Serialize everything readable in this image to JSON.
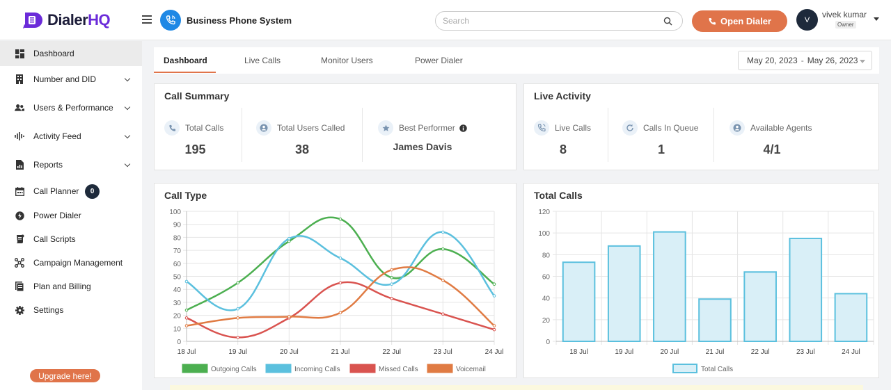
{
  "app": {
    "logo_prefix": "Dialer",
    "logo_suffix": "HQ",
    "system_title": "Business Phone System"
  },
  "header": {
    "search_placeholder": "Search",
    "open_dialer_label": "Open Dialer",
    "user_initial": "V",
    "user_name": "vivek kumar",
    "user_role": "Owner"
  },
  "sidebar": {
    "items": [
      {
        "label": "Dashboard",
        "icon": "dashboard-icon"
      },
      {
        "label": "Number and DID",
        "icon": "building-icon"
      },
      {
        "label": "Users & Performance",
        "icon": "users-icon"
      },
      {
        "label": "Activity Feed",
        "icon": "activity-icon"
      },
      {
        "label": "Reports",
        "icon": "report-icon"
      },
      {
        "label": "Call Planner",
        "icon": "calendar-icon",
        "badge": "0"
      },
      {
        "label": "Power Dialer",
        "icon": "power-icon"
      },
      {
        "label": "Call Scripts",
        "icon": "script-icon"
      },
      {
        "label": "Campaign Management",
        "icon": "campaign-icon"
      },
      {
        "label": "Plan and Billing",
        "icon": "billing-icon"
      },
      {
        "label": "Settings",
        "icon": "gear-icon"
      }
    ],
    "upgrade_label": "Upgrade here!"
  },
  "tabs": {
    "items": [
      "Dashboard",
      "Live Calls",
      "Monitor Users",
      "Power Dialer"
    ],
    "date_start": "May 20, 2023",
    "date_sep": "-",
    "date_end": "May 26, 2023"
  },
  "call_summary": {
    "title": "Call Summary",
    "total_calls_label": "Total Calls",
    "total_calls_value": "195",
    "total_users_label": "Total Users Called",
    "total_users_value": "38",
    "best_performer_label": "Best Performer",
    "best_performer_value": "James Davis"
  },
  "live_activity": {
    "title": "Live Activity",
    "live_calls_label": "Live Calls",
    "live_calls_value": "8",
    "queue_label": "Calls In Queue",
    "queue_value": "1",
    "agents_label": "Available Agents",
    "agents_value": "4/1"
  },
  "colors": {
    "accent": "#e0744a",
    "outgoing": "#4caf50",
    "incoming": "#5bc0de",
    "missed": "#d9534f",
    "voicemail": "#e07b43",
    "total_bar_fill": "#d9eff7",
    "total_bar_stroke": "#5bc0de"
  },
  "chart_data": [
    {
      "type": "line",
      "title": "Call Type",
      "categories": [
        "18 Jul",
        "19 Jul",
        "20 Jul",
        "21 Jul",
        "22 Jul",
        "23 Jul",
        "24 Jul"
      ],
      "ylim": [
        0,
        100
      ],
      "yticks": [
        0,
        10,
        20,
        30,
        40,
        50,
        60,
        70,
        80,
        90,
        100
      ],
      "grid": true,
      "legend": "bottom",
      "series": [
        {
          "name": "Outgoing Calls",
          "values": [
            24,
            45,
            77,
            94,
            49,
            71,
            44
          ]
        },
        {
          "name": "Incoming Calls",
          "values": [
            46,
            25,
            79,
            64,
            44,
            84,
            35
          ]
        },
        {
          "name": "Missed Calls",
          "values": [
            18,
            3,
            18,
            45,
            33,
            21,
            9
          ]
        },
        {
          "name": "Voicemail",
          "values": [
            12,
            18,
            19,
            22,
            55,
            47,
            12
          ]
        }
      ]
    },
    {
      "type": "bar",
      "title": "Total Calls",
      "categories": [
        "18 Jul",
        "19 Jul",
        "20 Jul",
        "21 Jul",
        "22 Jul",
        "23 Jul",
        "24 Jul"
      ],
      "ylim": [
        0,
        120
      ],
      "yticks": [
        0,
        20,
        40,
        60,
        80,
        100,
        120
      ],
      "grid": true,
      "legend": "bottom",
      "series": [
        {
          "name": "Total Calls",
          "values": [
            73,
            88,
            101,
            39,
            64,
            95,
            44
          ]
        }
      ]
    }
  ]
}
